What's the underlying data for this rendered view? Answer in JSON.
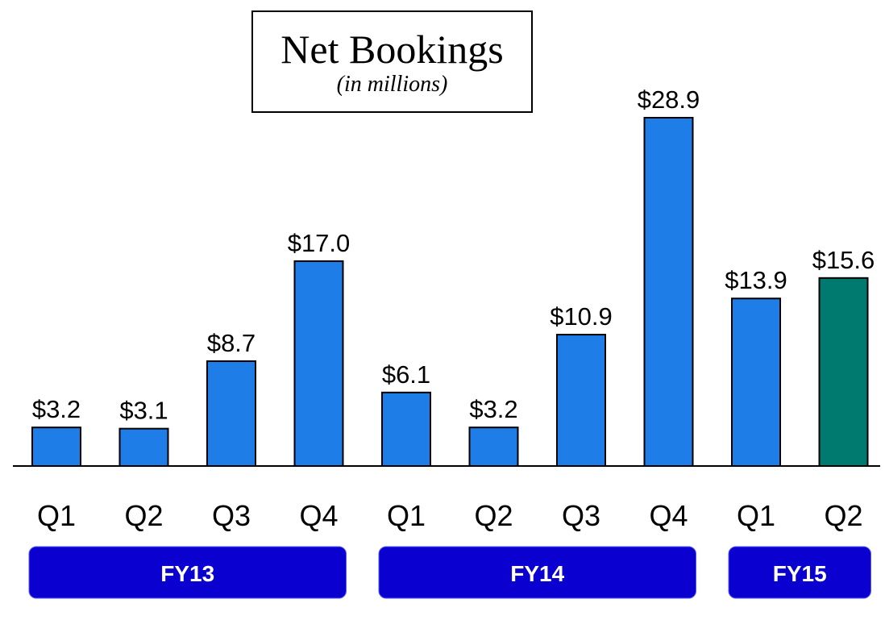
{
  "chart_data": {
    "type": "bar",
    "title": "Net Bookings",
    "subtitle": "(in millions)",
    "categories": [
      "Q1",
      "Q2",
      "Q3",
      "Q4",
      "Q1",
      "Q2",
      "Q3",
      "Q4",
      "Q1",
      "Q2"
    ],
    "values": [
      3.2,
      3.1,
      8.7,
      17.0,
      6.1,
      3.2,
      10.9,
      28.9,
      13.9,
      15.6
    ],
    "value_labels": [
      "$3.2",
      "$3.1",
      "$8.7",
      "$17.0",
      "$6.1",
      "$3.2",
      "$10.9",
      "$28.9",
      "$13.9",
      "$15.6"
    ],
    "groups": [
      {
        "label": "FY13",
        "categories": [
          0,
          3
        ]
      },
      {
        "label": "FY14",
        "categories": [
          4,
          7
        ]
      },
      {
        "label": "FY15",
        "categories": [
          8,
          9
        ]
      }
    ],
    "highlight_index": 9,
    "ylim": [
      0,
      28.9
    ],
    "grid": false,
    "colors": {
      "bar": "#1e7de6",
      "highlight_bar": "#007a6e",
      "group_band": "#0a00cf",
      "group_text": "#ffffff",
      "axis": "#000000"
    }
  }
}
